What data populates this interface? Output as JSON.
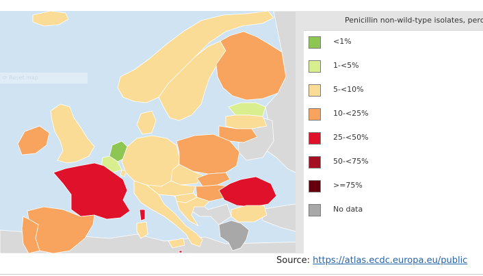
{
  "map": {
    "reset_label": "Reset map",
    "background": "#cfe3f2",
    "countries": [
      {
        "name": "France",
        "category": "25-<50%"
      },
      {
        "name": "Romania",
        "category": "25-<50%"
      },
      {
        "name": "Malta",
        "category": "25-<50%"
      },
      {
        "name": "Ireland",
        "category": "10-<25%"
      },
      {
        "name": "Spain",
        "category": "10-<25%"
      },
      {
        "name": "Portugal",
        "category": "10-<25%"
      },
      {
        "name": "Poland",
        "category": "10-<25%"
      },
      {
        "name": "Finland",
        "category": "10-<25%"
      },
      {
        "name": "Lithuania",
        "category": "10-<25%"
      },
      {
        "name": "Hungary",
        "category": "10-<25%"
      },
      {
        "name": "Slovakia",
        "category": "10-<25%"
      },
      {
        "name": "Estonia",
        "category": "1-<5%"
      },
      {
        "name": "Netherlands",
        "category": "<1%"
      },
      {
        "name": "Belgium",
        "category": "1-<5%"
      },
      {
        "name": "Bulgaria",
        "category": "5-<10%"
      },
      {
        "name": "Germany",
        "category": "5-<10%"
      },
      {
        "name": "Italy",
        "category": "5-<10%"
      },
      {
        "name": "United Kingdom",
        "category": "5-<10%"
      },
      {
        "name": "Norway",
        "category": "5-<10%"
      },
      {
        "name": "Sweden",
        "category": "5-<10%"
      },
      {
        "name": "Denmark",
        "category": "5-<10%"
      },
      {
        "name": "Latvia",
        "category": "5-<10%"
      },
      {
        "name": "Czechia",
        "category": "5-<10%"
      },
      {
        "name": "Austria",
        "category": "5-<10%"
      },
      {
        "name": "Slovenia",
        "category": "5-<10%"
      },
      {
        "name": "Croatia",
        "category": "5-<10%"
      },
      {
        "name": "Iceland",
        "category": "5-<10%"
      },
      {
        "name": "Greece",
        "category": "No data"
      },
      {
        "name": "Cyprus",
        "category": "5-<10%"
      },
      {
        "name": "Luxembourg",
        "category": "5-<10%"
      }
    ]
  },
  "legend": {
    "title": "Penicillin non-wild-type isolates, percentage (%)",
    "items": [
      {
        "label": "<1%",
        "color": "#8dc653"
      },
      {
        "label": "1-<5%",
        "color": "#d9ee8f"
      },
      {
        "label": "5-<10%",
        "color": "#fbdc97"
      },
      {
        "label": "10-<25%",
        "color": "#f8a45e"
      },
      {
        "label": "25-<50%",
        "color": "#e0112b"
      },
      {
        "label": "50-<75%",
        "color": "#a50f22"
      },
      {
        "label": ">=75%",
        "color": "#67000d"
      },
      {
        "label": "No data",
        "color": "#a8a8a8"
      }
    ]
  },
  "source": {
    "prefix": "Source: ",
    "link_text": "https://atlas.ecdc.europa.eu/public"
  },
  "colors": {
    "outside_eea": "#d9d9d9",
    "sea": "#cfe3f2"
  }
}
